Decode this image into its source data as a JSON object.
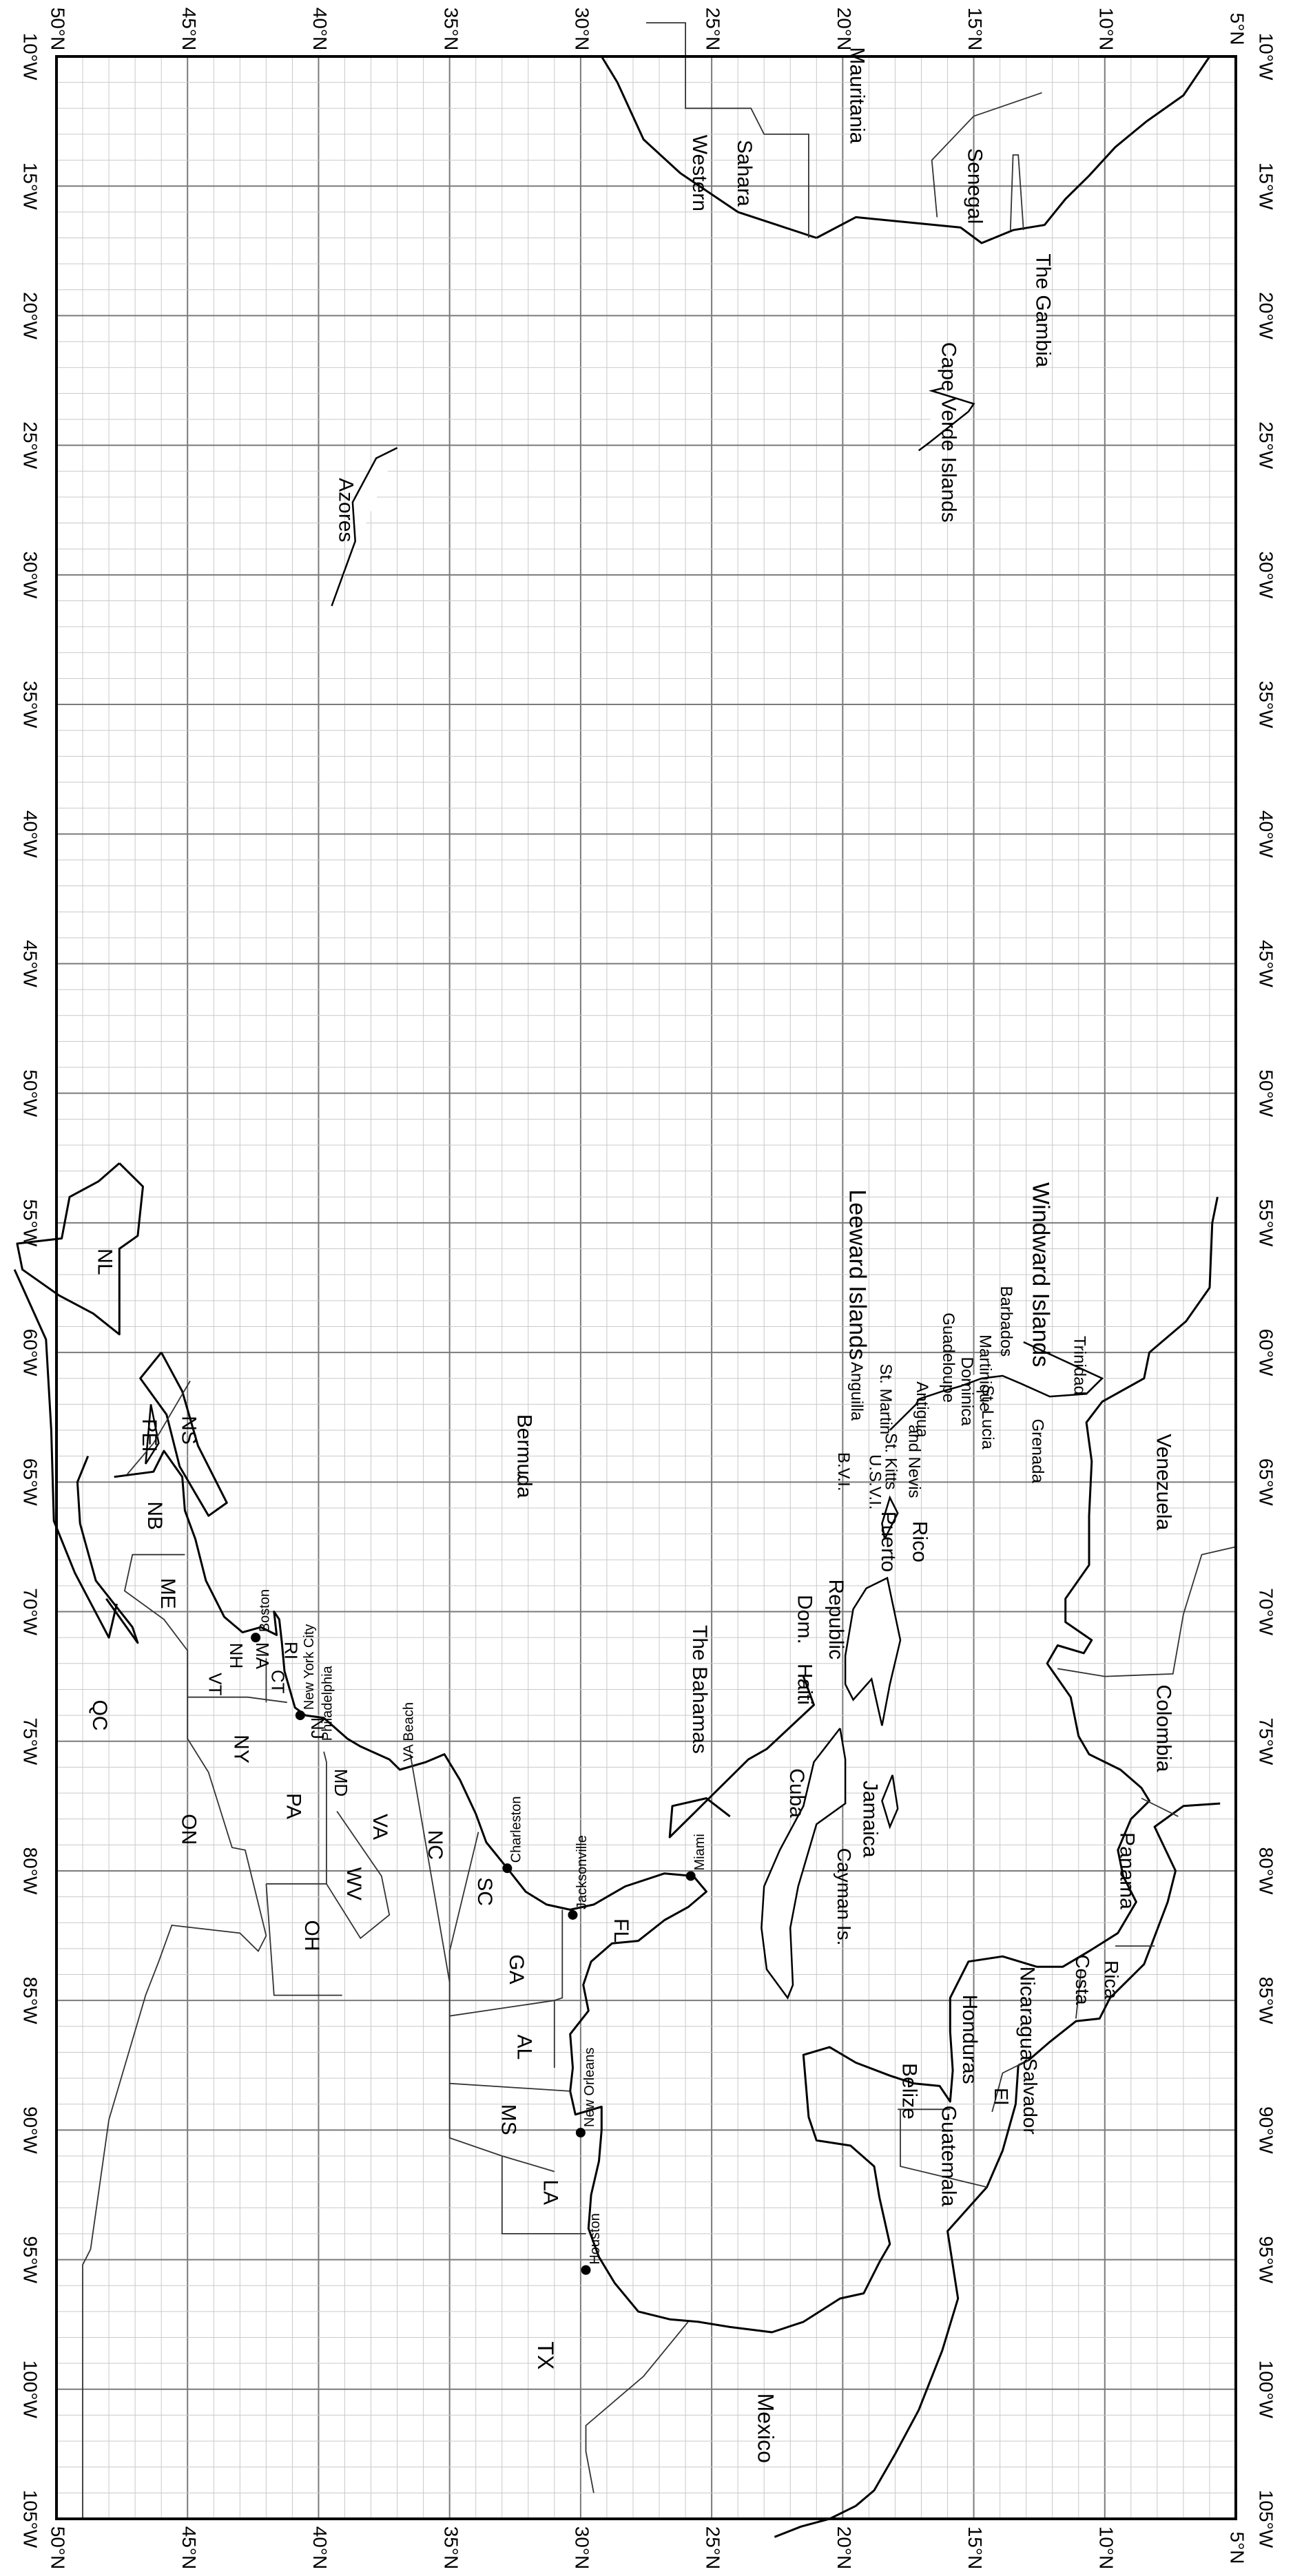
{
  "map": {
    "lon_range": [
      -105,
      -10
    ],
    "lat_range": [
      5,
      50
    ],
    "rotation": "rotated 90 degrees clockwise; north toward left edge, west toward bottom",
    "lat_ticks": [
      50,
      45,
      40,
      35,
      30,
      25,
      20,
      15,
      10,
      5
    ],
    "lon_ticks": [
      10,
      15,
      20,
      25,
      30,
      35,
      40,
      45,
      50,
      55,
      60,
      65,
      70,
      75,
      80,
      85,
      90,
      95,
      100,
      105
    ],
    "lat_suffix": "°N",
    "lon_suffix": "°W"
  },
  "labels": [
    {
      "id": "western-sahara-1",
      "text": "Western",
      "lon": -14.5,
      "lat": 25.5,
      "size": 30
    },
    {
      "id": "western-sahara-2",
      "text": "Sahara",
      "lon": -14.5,
      "lat": 23.8,
      "size": 30
    },
    {
      "id": "mauritania",
      "text": "Mauritania",
      "lon": -11.5,
      "lat": 19.5,
      "size": 30
    },
    {
      "id": "senegal",
      "text": "Senegal",
      "lon": -15,
      "lat": 15,
      "size": 30
    },
    {
      "id": "the-gambia",
      "text": "The Gambia",
      "lon": -19.8,
      "lat": 12.4,
      "size": 30
    },
    {
      "id": "cape-verde",
      "text": "Cape  Verde Islands",
      "lon": -24.5,
      "lat": 16,
      "size": 30
    },
    {
      "id": "azores",
      "text": "Azores",
      "lon": -27.5,
      "lat": 39,
      "size": 30
    },
    {
      "id": "bermuda",
      "text": "Bermuda",
      "lon": -64,
      "lat": 32.2,
      "size": 30
    },
    {
      "id": "leeward-islands",
      "text": "Leeward Islands",
      "lon": -57,
      "lat": 19.5,
      "size": 34
    },
    {
      "id": "windward-islands",
      "text": "Windward Islands",
      "lon": -57,
      "lat": 12.5,
      "size": 34
    },
    {
      "id": "anguilla",
      "text": "Anguilla",
      "lon": -61.5,
      "lat": 19.5,
      "size": 24
    },
    {
      "id": "st-martin",
      "text": "St. Martin",
      "lon": -61.8,
      "lat": 18.4,
      "size": 24
    },
    {
      "id": "antigua",
      "text": "Antigua",
      "lon": -62.2,
      "lat": 17,
      "size": 24
    },
    {
      "id": "guadeloupe",
      "text": "Guadeloupe",
      "lon": -60.2,
      "lat": 16,
      "size": 24
    },
    {
      "id": "dominica",
      "text": "Dominica",
      "lon": -61.5,
      "lat": 15.3,
      "size": 24
    },
    {
      "id": "martinique",
      "text": "Martinique",
      "lon": -60.8,
      "lat": 14.6,
      "size": 24
    },
    {
      "id": "bvi",
      "text": "B.V.I.",
      "lon": -64.6,
      "lat": 20,
      "size": 24
    },
    {
      "id": "usvi",
      "text": "U.S.V.I.",
      "lon": -65,
      "lat": 18.8,
      "size": 24
    },
    {
      "id": "st-kitts-1",
      "text": "St. Kitts",
      "lon": -64.2,
      "lat": 18.2,
      "size": 24
    },
    {
      "id": "st-kitts-2",
      "text": "and Nevis",
      "lon": -64.2,
      "lat": 17.3,
      "size": 24
    },
    {
      "id": "st-lucia",
      "text": "St. Lucia",
      "lon": -62.5,
      "lat": 14.5,
      "size": 24
    },
    {
      "id": "barbados",
      "text": "Barbados",
      "lon": -58.8,
      "lat": 13.8,
      "size": 24
    },
    {
      "id": "grenada",
      "text": "Grenada",
      "lon": -63.8,
      "lat": 12.6,
      "size": 24
    },
    {
      "id": "trinidad",
      "text": "Trinidad",
      "lon": -60.5,
      "lat": 11,
      "size": 24
    },
    {
      "id": "venezuela",
      "text": "Venezuela",
      "lon": -65,
      "lat": 7.8,
      "size": 30
    },
    {
      "id": "colombia",
      "text": "Colombia",
      "lon": -74.5,
      "lat": 7.8,
      "size": 30
    },
    {
      "id": "panama",
      "text": "Panama",
      "lon": -80,
      "lat": 9.2,
      "size": 30
    },
    {
      "id": "costa-1",
      "text": "Costa",
      "lon": -84.2,
      "lat": 10.9,
      "size": 28
    },
    {
      "id": "costa-2",
      "text": "Rica",
      "lon": -84.2,
      "lat": 9.8,
      "size": 28
    },
    {
      "id": "nicaragua",
      "text": "Nicaragua",
      "lon": -85.5,
      "lat": 13,
      "size": 30
    },
    {
      "id": "honduras",
      "text": "Honduras",
      "lon": -86.5,
      "lat": 15.2,
      "size": 30
    },
    {
      "id": "el-salvador-1",
      "text": "El",
      "lon": -88.7,
      "lat": 14,
      "size": 28
    },
    {
      "id": "el-salvador-2",
      "text": "Salvador",
      "lon": -88.7,
      "lat": 12.9,
      "size": 28
    },
    {
      "id": "belize",
      "text": "Belize",
      "lon": -88.5,
      "lat": 17.5,
      "size": 30
    },
    {
      "id": "guatemala",
      "text": "Guatemala",
      "lon": -91,
      "lat": 16,
      "size": 30
    },
    {
      "id": "mexico",
      "text": "Mexico",
      "lon": -101.5,
      "lat": 23,
      "size": 32
    },
    {
      "id": "cayman",
      "text": "Cayman Is.",
      "lon": -81,
      "lat": 20,
      "size": 28
    },
    {
      "id": "jamaica",
      "text": "Jamaica",
      "lon": -78,
      "lat": 19,
      "size": 30
    },
    {
      "id": "cuba",
      "text": "Cuba",
      "lon": -77,
      "lat": 21.8,
      "size": 30
    },
    {
      "id": "haiti",
      "text": "Haiti",
      "lon": -72.8,
      "lat": 21.5,
      "size": 30
    },
    {
      "id": "dom-rep-1",
      "text": "Dom.",
      "lon": -70.3,
      "lat": 21.5,
      "size": 30
    },
    {
      "id": "dom-rep-2",
      "text": "Republic",
      "lon": -70.3,
      "lat": 20.3,
      "size": 30
    },
    {
      "id": "puerto-rico-1",
      "text": "Puerto",
      "lon": -67.3,
      "lat": 18.3,
      "size": 30
    },
    {
      "id": "puerto-rico-2",
      "text": "Rico",
      "lon": -67.3,
      "lat": 17.1,
      "size": 30
    },
    {
      "id": "bahamas",
      "text": "The Bahamas",
      "lon": -73,
      "lat": 25.5,
      "size": 30
    },
    {
      "id": "nl",
      "text": "NL",
      "lon": -56.5,
      "lat": 48.2,
      "size": 30
    },
    {
      "id": "pei",
      "text": "PEI",
      "lon": -63.2,
      "lat": 46.5,
      "size": 30
    },
    {
      "id": "ns",
      "text": "NS",
      "lon": -63,
      "lat": 45,
      "size": 30
    },
    {
      "id": "nb",
      "text": "NB",
      "lon": -66.3,
      "lat": 46.3,
      "size": 30
    },
    {
      "id": "me",
      "text": "ME",
      "lon": -69.3,
      "lat": 45.8,
      "size": 30
    },
    {
      "id": "qc",
      "text": "QC",
      "lon": -74,
      "lat": 48.4,
      "size": 30
    },
    {
      "id": "on",
      "text": "ON",
      "lon": -78.4,
      "lat": 45,
      "size": 30
    },
    {
      "id": "ny",
      "text": "NY",
      "lon": -75.3,
      "lat": 43,
      "size": 30
    },
    {
      "id": "vt",
      "text": "VT",
      "lon": -72.8,
      "lat": 44,
      "size": 26
    },
    {
      "id": "nh",
      "text": "NH",
      "lon": -71.7,
      "lat": 43.2,
      "size": 26
    },
    {
      "id": "ma",
      "text": "MA",
      "lon": -71.7,
      "lat": 42.2,
      "size": 26
    },
    {
      "id": "ct",
      "text": "CT",
      "lon": -72.7,
      "lat": 41.6,
      "size": 26
    },
    {
      "id": "ri",
      "text": "RI",
      "lon": -71.5,
      "lat": 41.1,
      "size": 26
    },
    {
      "id": "nj",
      "text": "NJ",
      "lon": -74.5,
      "lat": 40.1,
      "size": 26
    },
    {
      "id": "md",
      "text": "MD",
      "lon": -76.6,
      "lat": 39.2,
      "size": 26
    },
    {
      "id": "pa",
      "text": "PA",
      "lon": -77.5,
      "lat": 41,
      "size": 30
    },
    {
      "id": "va",
      "text": "VA",
      "lon": -78.3,
      "lat": 37.7,
      "size": 30
    },
    {
      "id": "wv",
      "text": "WV",
      "lon": -80.5,
      "lat": 38.7,
      "size": 30
    },
    {
      "id": "oh",
      "text": "OH",
      "lon": -82.5,
      "lat": 40.3,
      "size": 30
    },
    {
      "id": "nc",
      "text": "NC",
      "lon": -79,
      "lat": 35.6,
      "size": 30
    },
    {
      "id": "sc",
      "text": "SC",
      "lon": -80.8,
      "lat": 33.7,
      "size": 30
    },
    {
      "id": "ga",
      "text": "GA",
      "lon": -83.8,
      "lat": 32.5,
      "size": 30
    },
    {
      "id": "fl",
      "text": "FL",
      "lon": -82.3,
      "lat": 28.5,
      "size": 30
    },
    {
      "id": "al",
      "text": "AL",
      "lon": -86.8,
      "lat": 32.2,
      "size": 30
    },
    {
      "id": "ms",
      "text": "MS",
      "lon": -89.6,
      "lat": 32.8,
      "size": 30
    },
    {
      "id": "la",
      "text": "LA",
      "lon": -92.4,
      "lat": 31.2,
      "size": 30
    },
    {
      "id": "tx",
      "text": "TX",
      "lon": -98.7,
      "lat": 31.4,
      "size": 32
    }
  ],
  "cities": [
    {
      "id": "boston",
      "text": "Boston",
      "lon": -71,
      "lat": 42.4,
      "size": 20,
      "dot": true
    },
    {
      "id": "new-york",
      "text": "New York City",
      "lon": -74,
      "lat": 40.7,
      "size": 20,
      "dot": true
    },
    {
      "id": "philadelphia",
      "text": "Philadelphia",
      "lon": -75.2,
      "lat": 40,
      "size": 20,
      "dot": false
    },
    {
      "id": "va-beach",
      "text": "VA Beach",
      "lon": -76,
      "lat": 36.9,
      "size": 20,
      "dot": false
    },
    {
      "id": "charleston",
      "text": "Charleston",
      "lon": -79.9,
      "lat": 32.8,
      "size": 20,
      "dot": true
    },
    {
      "id": "jacksonville",
      "text": "Jacksonville",
      "lon": -81.7,
      "lat": 30.3,
      "size": 20,
      "dot": true
    },
    {
      "id": "miami",
      "text": "Miami",
      "lon": -80.2,
      "lat": 25.8,
      "size": 20,
      "dot": true
    },
    {
      "id": "new-orleans",
      "text": "New Orleans",
      "lon": -90.1,
      "lat": 30,
      "size": 20,
      "dot": true
    },
    {
      "id": "houston",
      "text": "Houston",
      "lon": -95.4,
      "lat": 29.8,
      "size": 20,
      "dot": true
    }
  ]
}
